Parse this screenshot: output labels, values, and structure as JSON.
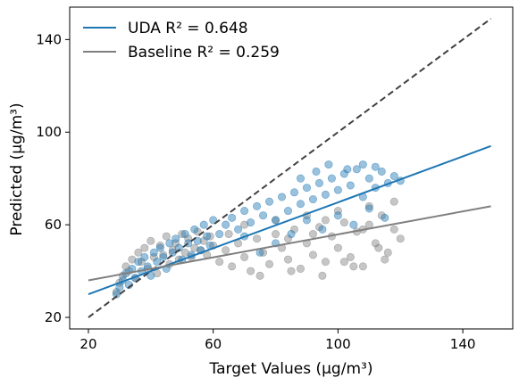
{
  "chart_data": {
    "type": "scatter",
    "xlabel": "Target Values (μg/m³)",
    "ylabel": "Predicted (μg/m³)",
    "xlim": [
      14,
      156
    ],
    "ylim": [
      15,
      154
    ],
    "xticks": [
      20,
      60,
      100,
      140
    ],
    "yticks": [
      20,
      60,
      100,
      140
    ],
    "grid": false,
    "legend": {
      "placement": "top-left",
      "entries": [
        {
          "name": "UDA",
          "metric": "R² = 0.648",
          "color": "#1f77b4"
        },
        {
          "name": "Baseline",
          "metric": "R² = 0.259",
          "color": "#7f7f7f"
        }
      ]
    },
    "identity_line": {
      "x": [
        20,
        149
      ],
      "y": [
        20,
        149
      ],
      "color": "#404040",
      "style": "dashed"
    },
    "fit_lines": [
      {
        "name": "UDA",
        "x": [
          20,
          149
        ],
        "y": [
          30,
          94
        ],
        "color": "#1f77b4"
      },
      {
        "name": "Baseline",
        "x": [
          20,
          149
        ],
        "y": [
          36,
          68
        ],
        "color": "#808080"
      }
    ],
    "series": [
      {
        "name": "Baseline",
        "color": "#808080",
        "points": [
          [
            29,
            31
          ],
          [
            30,
            35
          ],
          [
            31,
            38
          ],
          [
            32,
            42
          ],
          [
            33,
            40
          ],
          [
            34,
            45
          ],
          [
            35,
            37
          ],
          [
            36,
            48
          ],
          [
            37,
            44
          ],
          [
            38,
            50
          ],
          [
            39,
            41
          ],
          [
            40,
            53
          ],
          [
            41,
            46
          ],
          [
            42,
            39
          ],
          [
            43,
            51
          ],
          [
            44,
            47
          ],
          [
            45,
            55
          ],
          [
            46,
            43
          ],
          [
            47,
            49
          ],
          [
            48,
            52
          ],
          [
            49,
            45
          ],
          [
            50,
            56
          ],
          [
            51,
            48
          ],
          [
            52,
            54
          ],
          [
            53,
            46
          ],
          [
            54,
            50
          ],
          [
            55,
            57
          ],
          [
            56,
            49
          ],
          [
            57,
            53
          ],
          [
            58,
            47
          ],
          [
            59,
            55
          ],
          [
            60,
            51
          ],
          [
            62,
            44
          ],
          [
            64,
            49
          ],
          [
            66,
            42
          ],
          [
            68,
            52
          ],
          [
            70,
            46
          ],
          [
            72,
            40
          ],
          [
            74,
            54
          ],
          [
            76,
            48
          ],
          [
            78,
            43
          ],
          [
            80,
            56
          ],
          [
            82,
            50
          ],
          [
            84,
            45
          ],
          [
            86,
            58
          ],
          [
            88,
            41
          ],
          [
            90,
            52
          ],
          [
            92,
            47
          ],
          [
            94,
            59
          ],
          [
            96,
            44
          ],
          [
            98,
            55
          ],
          [
            100,
            50
          ],
          [
            102,
            61
          ],
          [
            104,
            46
          ],
          [
            106,
            57
          ],
          [
            108,
            42
          ],
          [
            110,
            60
          ],
          [
            112,
            52
          ],
          [
            114,
            64
          ],
          [
            116,
            48
          ],
          [
            118,
            58
          ],
          [
            120,
            54
          ],
          [
            65,
            56
          ],
          [
            70,
            60
          ],
          [
            75,
            38
          ],
          [
            80,
            62
          ],
          [
            85,
            40
          ],
          [
            90,
            64
          ],
          [
            95,
            38
          ],
          [
            100,
            66
          ],
          [
            105,
            42
          ],
          [
            110,
            68
          ],
          [
            115,
            45
          ],
          [
            118,
            70
          ],
          [
            84,
            54
          ],
          [
            92,
            56
          ],
          [
            96,
            62
          ],
          [
            102,
            44
          ],
          [
            108,
            58
          ],
          [
            113,
            50
          ]
        ]
      },
      {
        "name": "UDA",
        "color": "#1f77b4",
        "points": [
          [
            29,
            30
          ],
          [
            30,
            33
          ],
          [
            31,
            36
          ],
          [
            32,
            39
          ],
          [
            33,
            34
          ],
          [
            34,
            41
          ],
          [
            35,
            37
          ],
          [
            36,
            44
          ],
          [
            37,
            40
          ],
          [
            38,
            46
          ],
          [
            39,
            42
          ],
          [
            40,
            38
          ],
          [
            41,
            48
          ],
          [
            42,
            44
          ],
          [
            43,
            50
          ],
          [
            44,
            46
          ],
          [
            45,
            41
          ],
          [
            46,
            52
          ],
          [
            47,
            48
          ],
          [
            48,
            54
          ],
          [
            49,
            50
          ],
          [
            50,
            45
          ],
          [
            51,
            56
          ],
          [
            52,
            52
          ],
          [
            53,
            47
          ],
          [
            54,
            58
          ],
          [
            55,
            53
          ],
          [
            56,
            49
          ],
          [
            57,
            60
          ],
          [
            58,
            55
          ],
          [
            59,
            51
          ],
          [
            60,
            62
          ],
          [
            62,
            56
          ],
          [
            64,
            60
          ],
          [
            66,
            63
          ],
          [
            68,
            58
          ],
          [
            70,
            66
          ],
          [
            72,
            61
          ],
          [
            74,
            68
          ],
          [
            76,
            64
          ],
          [
            78,
            70
          ],
          [
            80,
            62
          ],
          [
            82,
            72
          ],
          [
            84,
            66
          ],
          [
            86,
            74
          ],
          [
            88,
            69
          ],
          [
            90,
            76
          ],
          [
            92,
            71
          ],
          [
            94,
            78
          ],
          [
            96,
            73
          ],
          [
            98,
            80
          ],
          [
            100,
            75
          ],
          [
            102,
            82
          ],
          [
            104,
            77
          ],
          [
            106,
            84
          ],
          [
            108,
            72
          ],
          [
            110,
            80
          ],
          [
            112,
            76
          ],
          [
            114,
            83
          ],
          [
            116,
            78
          ],
          [
            118,
            81
          ],
          [
            120,
            79
          ],
          [
            85,
            56
          ],
          [
            90,
            62
          ],
          [
            95,
            58
          ],
          [
            100,
            64
          ],
          [
            105,
            60
          ],
          [
            110,
            67
          ],
          [
            115,
            63
          ],
          [
            88,
            80
          ],
          [
            93,
            83
          ],
          [
            97,
            86
          ],
          [
            103,
            84
          ],
          [
            108,
            86
          ],
          [
            112,
            85
          ],
          [
            80,
            52
          ],
          [
            75,
            48
          ],
          [
            70,
            55
          ]
        ]
      }
    ]
  }
}
